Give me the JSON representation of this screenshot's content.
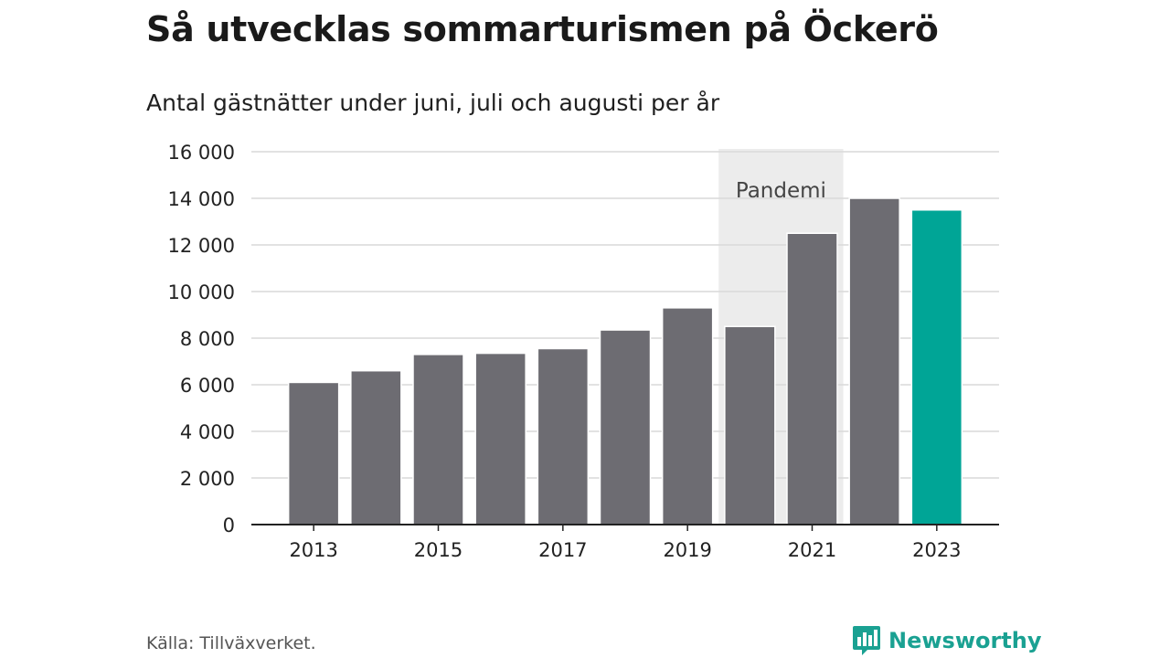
{
  "title": "Så utvecklas sommarturismen på Öckerö",
  "subtitle": "Antal gästnätter under juni, juli och augusti per år",
  "source": "Källa: Tillväxverket.",
  "brand": {
    "name": "Newsworthy",
    "icon": "newsworthy-logo-icon",
    "color": "#1aa192"
  },
  "chart_data": {
    "type": "bar",
    "categories": [
      "2013",
      "2014",
      "2015",
      "2016",
      "2017",
      "2018",
      "2019",
      "2020",
      "2021",
      "2022",
      "2023"
    ],
    "values": [
      6100,
      6600,
      7300,
      7350,
      7550,
      8350,
      9300,
      8500,
      12500,
      14000,
      13500
    ],
    "x_tick_labels": [
      "2013",
      "2015",
      "2017",
      "2019",
      "2021",
      "2023"
    ],
    "ylim": [
      0,
      16000
    ],
    "y_ticks": [
      0,
      2000,
      4000,
      6000,
      8000,
      10000,
      12000,
      14000,
      16000
    ],
    "y_tick_labels": [
      "0",
      "2 000",
      "4 000",
      "6 000",
      "8 000",
      "10 000",
      "12 000",
      "14 000",
      "16 000"
    ],
    "grid": true,
    "bar_color": "#6d6c72",
    "highlight_color": "#00a596",
    "highlight_category": "2023",
    "shaded_region": {
      "label": "Pandemi",
      "from": "2020",
      "to": "2021",
      "color": "#ececec"
    }
  }
}
